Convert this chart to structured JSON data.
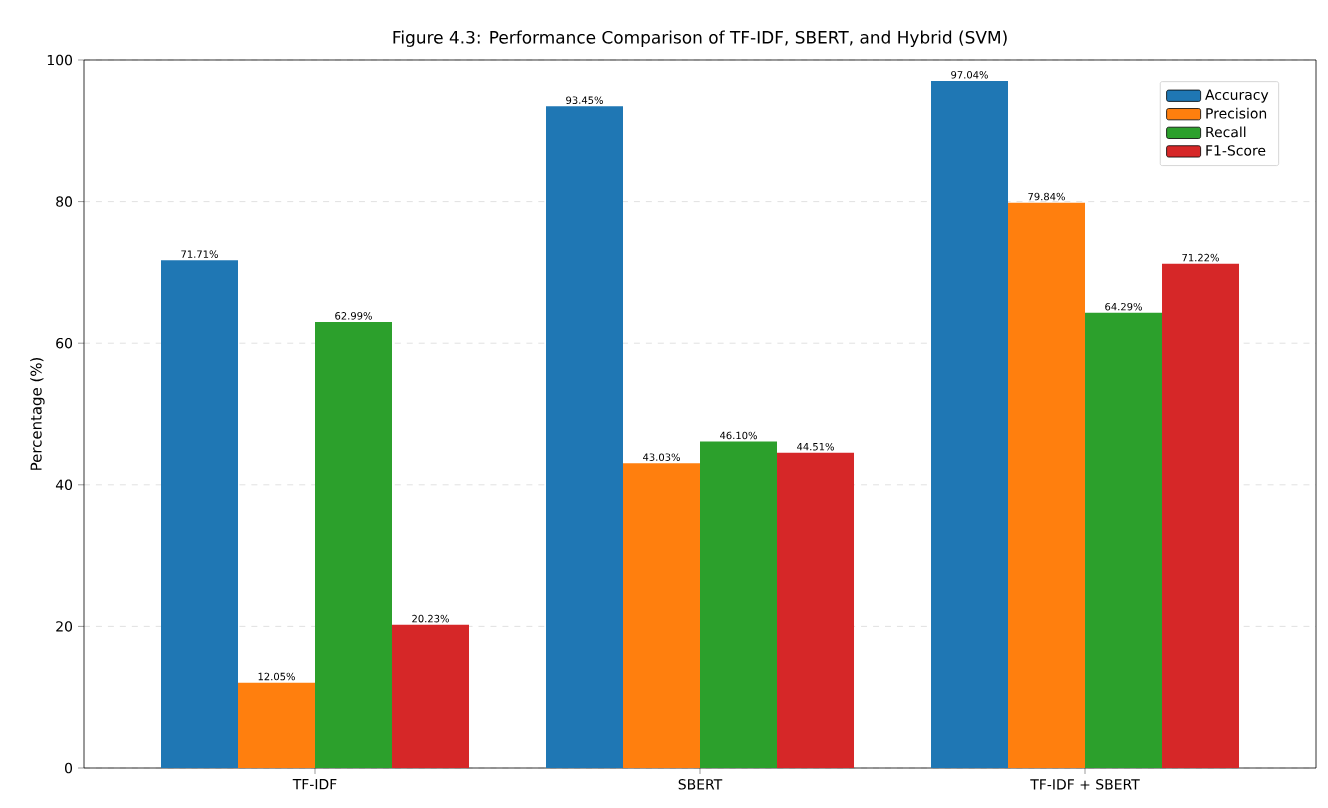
{
  "chart_data": {
    "type": "bar",
    "title": "Figure 4.3: Performance Comparison of TF-IDF, SBERT, and Hybrid (SVM)",
    "ylabel": "Percentage (%)",
    "categories": [
      "TF-IDF",
      "SBERT",
      "TF-IDF + SBERT"
    ],
    "series": [
      {
        "name": "Accuracy",
        "color": "#1f77b4",
        "values": [
          71.71,
          93.45,
          97.04
        ],
        "value_labels": [
          "71.71%",
          "93.45%",
          "97.04%"
        ]
      },
      {
        "name": "Precision",
        "color": "#ff7f0e",
        "values": [
          12.05,
          43.03,
          79.84
        ],
        "value_labels": [
          "12.05%",
          "43.03%",
          "79.84%"
        ]
      },
      {
        "name": "Recall",
        "color": "#2ca02c",
        "values": [
          62.99,
          46.1,
          64.29
        ],
        "value_labels": [
          "62.99%",
          "46.10%",
          "64.29%"
        ]
      },
      {
        "name": "F1-Score",
        "color": "#d62728",
        "values": [
          20.23,
          44.51,
          71.22
        ],
        "value_labels": [
          "20.23%",
          "44.51%",
          "71.22%"
        ]
      }
    ],
    "ylim": [
      0,
      100
    ],
    "yticks": [
      0,
      20,
      40,
      60,
      80,
      100
    ],
    "grid": "y",
    "legend": "top right"
  }
}
